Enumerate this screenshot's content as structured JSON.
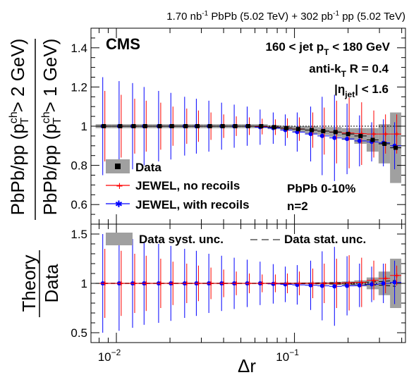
{
  "figure": {
    "lumi_label": "1.70 nb⁻¹ PbPb (5.02 TeV) + 302 pb⁻¹ pp (5.02 TeV)",
    "lumi_text": {
      "lumi1": "1.70 nb",
      "sup1": "-1",
      "rest1": " PbPb (5.02 TeV) + 302 pb",
      "sup2": "-1",
      "rest2": " pp (5.02 TeV)"
    }
  },
  "top_text": {
    "cms": "CMS",
    "jetpt": {
      "a": "160 < jet p",
      "sub": "T",
      "b": " < 180 GeV"
    },
    "algo": {
      "a": "anti-k",
      "sub": "T",
      "b": " R = 0.4"
    },
    "eta": {
      "a": "|η",
      "sub": "jet",
      "b": "| < 1.6"
    },
    "centrality": "PbPb 0-10%",
    "n": "n=2",
    "legend": {
      "data": "Data",
      "jewel_no": "JEWEL, no recoils",
      "jewel_with": "JEWEL, with recoils"
    }
  },
  "bottom_text": {
    "legend": {
      "syst": "Data syst. unc.",
      "stat": "Data stat. unc."
    }
  },
  "colors": {
    "data": "#000000",
    "band": "#a0a0a0",
    "jewel_no": "#ff0000",
    "jewel_with": "#0000ff"
  },
  "chart_data": [
    {
      "type": "scatter",
      "panel": "top",
      "ylabel_outer": {
        "a": "PbPb/pp (p",
        "sup": "ch",
        "sub": "T",
        "b": " > 2 GeV)"
      },
      "ylabel_inner": {
        "a": "PbPb/pp (p",
        "sup": "ch",
        "sub": "T",
        "b": " > 1 GeV)"
      },
      "x_scale": "log",
      "xlim": [
        0.0072,
        0.42
      ],
      "ylim": [
        0.5,
        1.5
      ],
      "yticks": [
        "0.6",
        "0.8",
        "1",
        "1.2",
        "1.4"
      ],
      "reference_line_y": 1,
      "x": [
        0.0085,
        0.0105,
        0.0125,
        0.0145,
        0.0175,
        0.0205,
        0.0245,
        0.0285,
        0.0335,
        0.0395,
        0.0465,
        0.055,
        0.065,
        0.077,
        0.09,
        0.105,
        0.125,
        0.145,
        0.17,
        0.2,
        0.235,
        0.275,
        0.32,
        0.37
      ],
      "series": [
        {
          "name": "Data",
          "y": [
            1.0,
            1.0,
            1.0,
            1.0,
            1.0,
            1.0,
            1.0,
            1.0,
            1.0,
            1.0,
            1.0,
            1.0,
            1.0,
            0.995,
            0.99,
            0.985,
            0.98,
            0.975,
            0.97,
            0.96,
            0.95,
            0.93,
            0.91,
            0.89
          ],
          "syst_unc": [
            0.01,
            0.01,
            0.01,
            0.01,
            0.01,
            0.01,
            0.01,
            0.01,
            0.01,
            0.01,
            0.01,
            0.01,
            0.01,
            0.01,
            0.012,
            0.015,
            0.02,
            0.02,
            0.025,
            0.03,
            0.04,
            0.06,
            0.1,
            0.18
          ]
        },
        {
          "name": "JEWEL, no recoils",
          "y": [
            1.0,
            1.0,
            1.0,
            1.0,
            1.0,
            1.0,
            1.0,
            1.0,
            1.0,
            1.0,
            1.0,
            1.0,
            0.998,
            0.995,
            0.99,
            0.985,
            0.98,
            0.975,
            0.97,
            0.965,
            0.962,
            0.96,
            0.96,
            0.96
          ],
          "err": [
            0.18,
            0.16,
            0.14,
            0.13,
            0.12,
            0.1,
            0.09,
            0.08,
            0.07,
            0.06,
            0.05,
            0.045,
            0.04,
            0.04,
            0.05,
            0.06,
            0.09,
            0.12,
            0.16,
            0.18,
            0.16,
            0.12,
            0.1,
            0.1
          ]
        },
        {
          "name": "JEWEL, with recoils",
          "y": [
            1.0,
            1.0,
            1.0,
            1.0,
            1.0,
            1.0,
            1.0,
            1.0,
            1.0,
            1.0,
            1.0,
            1.0,
            0.995,
            0.99,
            0.98,
            0.97,
            0.96,
            0.95,
            0.94,
            0.935,
            0.925,
            0.92,
            0.915,
            0.9
          ],
          "err": [
            0.25,
            0.23,
            0.22,
            0.2,
            0.18,
            0.17,
            0.15,
            0.14,
            0.13,
            0.12,
            0.11,
            0.1,
            0.09,
            0.08,
            0.08,
            0.1,
            0.14,
            0.2,
            0.22,
            0.18,
            0.13,
            0.1,
            0.12,
            0.12
          ]
        }
      ]
    },
    {
      "type": "scatter",
      "panel": "bottom",
      "ylabel": {
        "num": "Theory",
        "den": "Data"
      },
      "xlabel": "Δr",
      "x_scale": "log",
      "xlim": [
        0.0072,
        0.42
      ],
      "ylim": [
        0.4,
        1.6
      ],
      "yticks": [
        "0.5",
        "1",
        "1.5"
      ],
      "xticks": [
        {
          "base": "10",
          "exp": "−2",
          "value": 0.01
        },
        {
          "base": "10",
          "exp": "−1",
          "value": 0.1
        }
      ],
      "x": [
        0.0085,
        0.0105,
        0.0125,
        0.0145,
        0.0175,
        0.0205,
        0.0245,
        0.0285,
        0.0335,
        0.0395,
        0.0465,
        0.055,
        0.065,
        0.077,
        0.09,
        0.105,
        0.125,
        0.145,
        0.17,
        0.2,
        0.235,
        0.275,
        0.32,
        0.37
      ],
      "series": [
        {
          "name": "Data syst. unc.",
          "half_width": [
            0.005,
            0.005,
            0.005,
            0.005,
            0.005,
            0.005,
            0.005,
            0.005,
            0.005,
            0.005,
            0.005,
            0.005,
            0.005,
            0.006,
            0.007,
            0.008,
            0.01,
            0.012,
            0.015,
            0.02,
            0.03,
            0.06,
            0.12,
            0.25
          ]
        },
        {
          "name": "Data stat. unc.",
          "half_width": [
            0.002,
            0.002,
            0.002,
            0.002,
            0.002,
            0.002,
            0.002,
            0.002,
            0.002,
            0.002,
            0.002,
            0.002,
            0.002,
            0.002,
            0.003,
            0.003,
            0.004,
            0.005,
            0.006,
            0.008,
            0.01,
            0.015,
            0.02,
            0.03
          ]
        },
        {
          "name": "JEWEL, no recoils",
          "y": [
            1.0,
            1.0,
            1.0,
            1.0,
            1.0,
            1.0,
            1.0,
            1.0,
            1.0,
            1.0,
            1.0,
            1.0,
            1.0,
            1.0,
            1.0,
            1.0,
            1.0,
            1.0,
            1.0,
            1.005,
            1.01,
            1.03,
            1.05,
            1.08
          ],
          "err": [
            0.35,
            0.33,
            0.3,
            0.28,
            0.25,
            0.22,
            0.2,
            0.18,
            0.16,
            0.14,
            0.12,
            0.1,
            0.09,
            0.09,
            0.1,
            0.12,
            0.15,
            0.2,
            0.25,
            0.28,
            0.25,
            0.2,
            0.15,
            0.1
          ]
        },
        {
          "name": "JEWEL, with recoils",
          "y": [
            1.0,
            1.0,
            1.0,
            1.0,
            1.0,
            1.0,
            1.0,
            1.0,
            1.0,
            1.0,
            1.0,
            1.0,
            1.0,
            0.995,
            0.99,
            0.985,
            0.98,
            0.975,
            0.97,
            0.975,
            0.98,
            0.99,
            1.0,
            1.01
          ],
          "err": [
            0.5,
            0.48,
            0.45,
            0.42,
            0.4,
            0.38,
            0.35,
            0.33,
            0.3,
            0.28,
            0.26,
            0.24,
            0.22,
            0.2,
            0.18,
            0.2,
            0.25,
            0.35,
            0.4,
            0.3,
            0.22,
            0.18,
            0.2,
            0.22
          ]
        }
      ]
    }
  ]
}
